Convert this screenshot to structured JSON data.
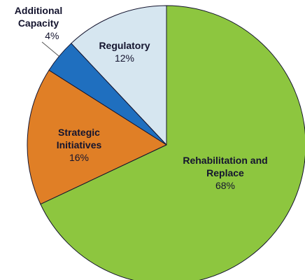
{
  "chart_data": {
    "type": "pie",
    "categories": [
      "Rehabilitation and Replace",
      "Strategic Initiatives",
      "Additional Capacity",
      "Regulatory"
    ],
    "values": [
      68,
      16,
      4,
      12
    ],
    "value_labels": [
      "68%",
      "16%",
      "4%",
      "12%"
    ],
    "colors": [
      "#8dc63f",
      "#e07f26",
      "#1f6fbf",
      "#d6e6f0"
    ]
  }
}
